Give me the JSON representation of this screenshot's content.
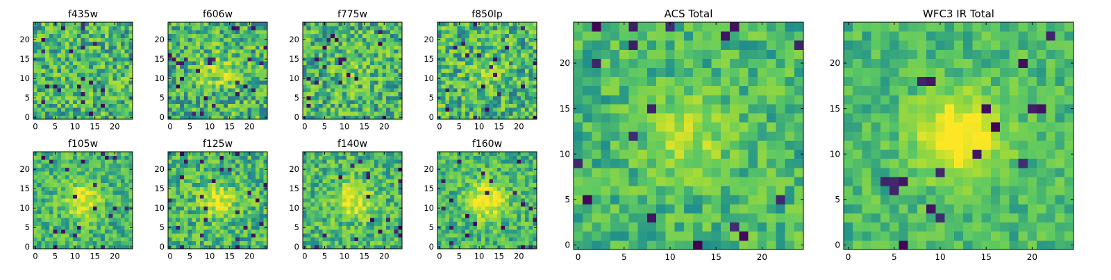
{
  "figure": {
    "colormap": [
      "#440154",
      "#3b528b",
      "#21918c",
      "#5ec962",
      "#a5db36",
      "#fde725"
    ]
  },
  "chart_data": [
    {
      "id": "f435w",
      "type": "heatmap",
      "title": "f435w",
      "grid_size": 25,
      "xlim": [
        0,
        24
      ],
      "ylim": [
        0,
        24
      ],
      "xticks": [
        0,
        5,
        10,
        15,
        20
      ],
      "yticks": [
        0,
        5,
        10,
        15,
        20
      ],
      "xticklabels": [
        "0",
        "5",
        "10",
        "15",
        "20"
      ],
      "yticklabels": [
        "0",
        "5",
        "10",
        "15",
        "20"
      ],
      "source_peak": 0.0,
      "noise": 0.55,
      "seed": 11
    },
    {
      "id": "f606w",
      "type": "heatmap",
      "title": "f606w",
      "grid_size": 25,
      "xlim": [
        0,
        24
      ],
      "ylim": [
        0,
        24
      ],
      "xticks": [
        0,
        5,
        10,
        15,
        20
      ],
      "yticks": [
        0,
        5,
        10,
        15,
        20
      ],
      "xticklabels": [
        "0",
        "5",
        "10",
        "15",
        "20"
      ],
      "yticklabels": [
        "0",
        "5",
        "10",
        "15",
        "20"
      ],
      "source_peak": 0.25,
      "noise": 0.55,
      "seed": 23
    },
    {
      "id": "f775w",
      "type": "heatmap",
      "title": "f775w",
      "grid_size": 25,
      "xlim": [
        0,
        24
      ],
      "ylim": [
        0,
        24
      ],
      "xticks": [
        0,
        5,
        10,
        15,
        20
      ],
      "yticks": [
        0,
        5,
        10,
        15,
        20
      ],
      "xticklabels": [
        "0",
        "5",
        "10",
        "15",
        "20"
      ],
      "yticklabels": [
        "0",
        "5",
        "10",
        "15",
        "20"
      ],
      "source_peak": 0.1,
      "noise": 0.55,
      "seed": 37
    },
    {
      "id": "f850lp",
      "type": "heatmap",
      "title": "f850lp",
      "grid_size": 25,
      "xlim": [
        0,
        24
      ],
      "ylim": [
        0,
        24
      ],
      "xticks": [
        0,
        5,
        10,
        15,
        20
      ],
      "yticks": [
        0,
        5,
        10,
        15,
        20
      ],
      "xticklabels": [
        "0",
        "5",
        "10",
        "15",
        "20"
      ],
      "yticklabels": [
        "0",
        "5",
        "10",
        "15",
        "20"
      ],
      "source_peak": 0.15,
      "noise": 0.55,
      "seed": 41
    },
    {
      "id": "f105w",
      "type": "heatmap",
      "title": "f105w",
      "grid_size": 25,
      "xlim": [
        0,
        24
      ],
      "ylim": [
        0,
        24
      ],
      "xticks": [
        0,
        5,
        10,
        15,
        20
      ],
      "yticks": [
        0,
        5,
        10,
        15,
        20
      ],
      "xticklabels": [
        "0",
        "5",
        "10",
        "15",
        "20"
      ],
      "yticklabels": [
        "0",
        "5",
        "10",
        "15",
        "20"
      ],
      "source_peak": 0.4,
      "noise": 0.4,
      "seed": 53
    },
    {
      "id": "f125w",
      "type": "heatmap",
      "title": "f125w",
      "grid_size": 25,
      "xlim": [
        0,
        24
      ],
      "ylim": [
        0,
        24
      ],
      "xticks": [
        0,
        5,
        10,
        15,
        20
      ],
      "yticks": [
        0,
        5,
        10,
        15,
        20
      ],
      "xticklabels": [
        "0",
        "5",
        "10",
        "15",
        "20"
      ],
      "yticklabels": [
        "0",
        "5",
        "10",
        "15",
        "20"
      ],
      "source_peak": 0.35,
      "noise": 0.45,
      "seed": 67
    },
    {
      "id": "f140w",
      "type": "heatmap",
      "title": "f140w",
      "grid_size": 25,
      "xlim": [
        0,
        24
      ],
      "ylim": [
        0,
        24
      ],
      "xticks": [
        0,
        5,
        10,
        15,
        20
      ],
      "yticks": [
        0,
        5,
        10,
        15,
        20
      ],
      "xticklabels": [
        "0",
        "5",
        "10",
        "15",
        "20"
      ],
      "yticklabels": [
        "0",
        "5",
        "10",
        "15",
        "20"
      ],
      "source_peak": 0.4,
      "noise": 0.45,
      "seed": 79
    },
    {
      "id": "f160w",
      "type": "heatmap",
      "title": "f160w",
      "grid_size": 25,
      "xlim": [
        0,
        24
      ],
      "ylim": [
        0,
        24
      ],
      "xticks": [
        0,
        5,
        10,
        15,
        20
      ],
      "yticks": [
        0,
        5,
        10,
        15,
        20
      ],
      "xticklabels": [
        "0",
        "5",
        "10",
        "15",
        "20"
      ],
      "yticklabels": [
        "0",
        "5",
        "10",
        "15",
        "20"
      ],
      "source_peak": 0.5,
      "noise": 0.4,
      "seed": 83
    },
    {
      "id": "acs-total",
      "type": "heatmap",
      "title": "ACS Total",
      "grid_size": 25,
      "xlim": [
        0,
        24
      ],
      "ylim": [
        0,
        24
      ],
      "xticks": [
        0,
        5,
        10,
        15,
        20
      ],
      "yticks": [
        0,
        5,
        10,
        15,
        20
      ],
      "xticklabels": [
        "0",
        "5",
        "10",
        "15",
        "20"
      ],
      "yticklabels": [
        "0",
        "5",
        "10",
        "15",
        "20"
      ],
      "source_peak": 0.25,
      "noise": 0.35,
      "seed": 97
    },
    {
      "id": "wfc3-ir-total",
      "type": "heatmap",
      "title": "WFC3 IR Total",
      "grid_size": 25,
      "xlim": [
        0,
        24
      ],
      "ylim": [
        0,
        24
      ],
      "xticks": [
        0,
        5,
        10,
        15,
        20
      ],
      "yticks": [
        0,
        5,
        10,
        15,
        20
      ],
      "xticklabels": [
        "0",
        "5",
        "10",
        "15",
        "20"
      ],
      "yticklabels": [
        "0",
        "5",
        "10",
        "15",
        "20"
      ],
      "source_peak": 0.55,
      "noise": 0.28,
      "seed": 101
    }
  ]
}
